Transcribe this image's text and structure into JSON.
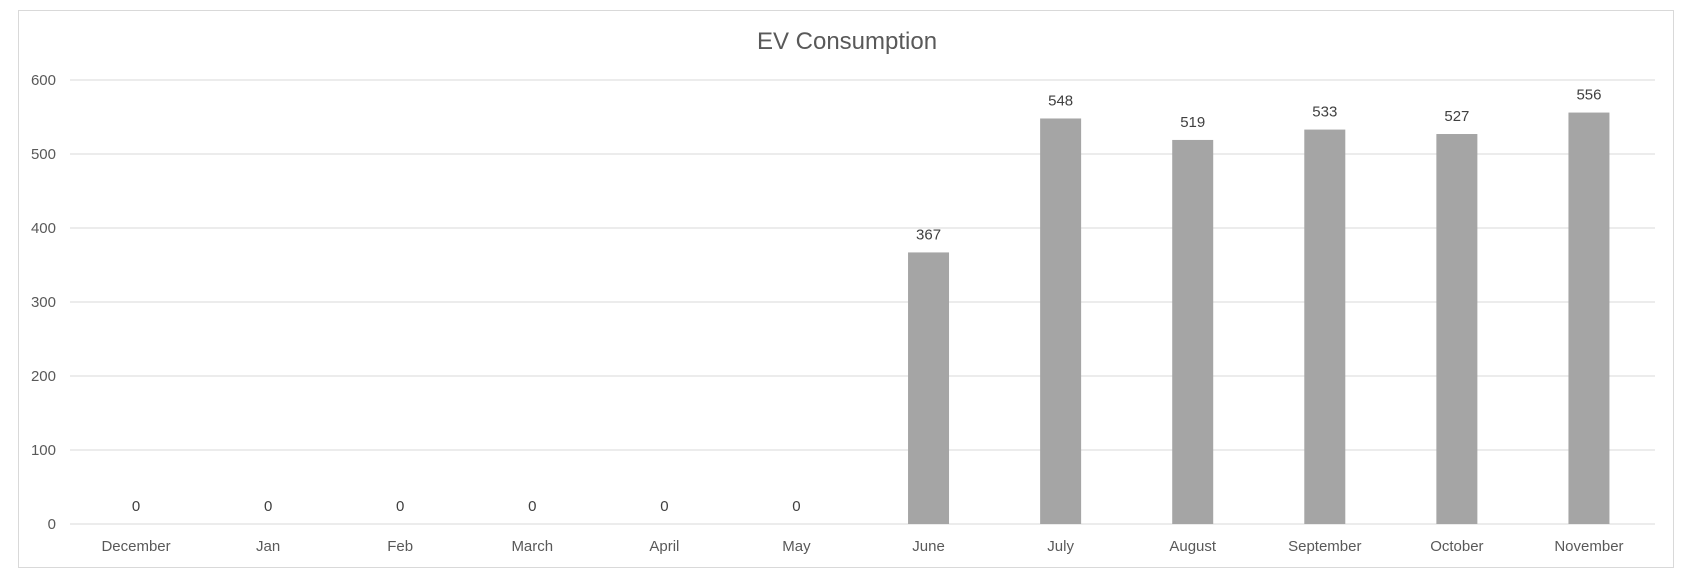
{
  "chart_data": {
    "type": "bar",
    "title": "EV Consumption",
    "xlabel": "",
    "ylabel": "",
    "categories": [
      "December",
      "Jan",
      "Feb",
      "March",
      "April",
      "May",
      "June",
      "July",
      "August",
      "September",
      "October",
      "November"
    ],
    "values": [
      0,
      0,
      0,
      0,
      0,
      0,
      367,
      548,
      519,
      533,
      527,
      556
    ],
    "data_labels": [
      "0",
      "0",
      "0",
      "0",
      "0",
      "0",
      "367",
      "548",
      "519",
      "533",
      "527",
      "556"
    ],
    "ylim": [
      0,
      600
    ],
    "yticks": [
      0,
      100,
      200,
      300,
      400,
      500,
      600
    ],
    "ytick_labels": [
      "0",
      "100",
      "200",
      "300",
      "400",
      "500",
      "600"
    ],
    "grid": true,
    "legend": "none",
    "bar_color": "#a5a5a5",
    "gridline_color": "#d9d9d9"
  }
}
